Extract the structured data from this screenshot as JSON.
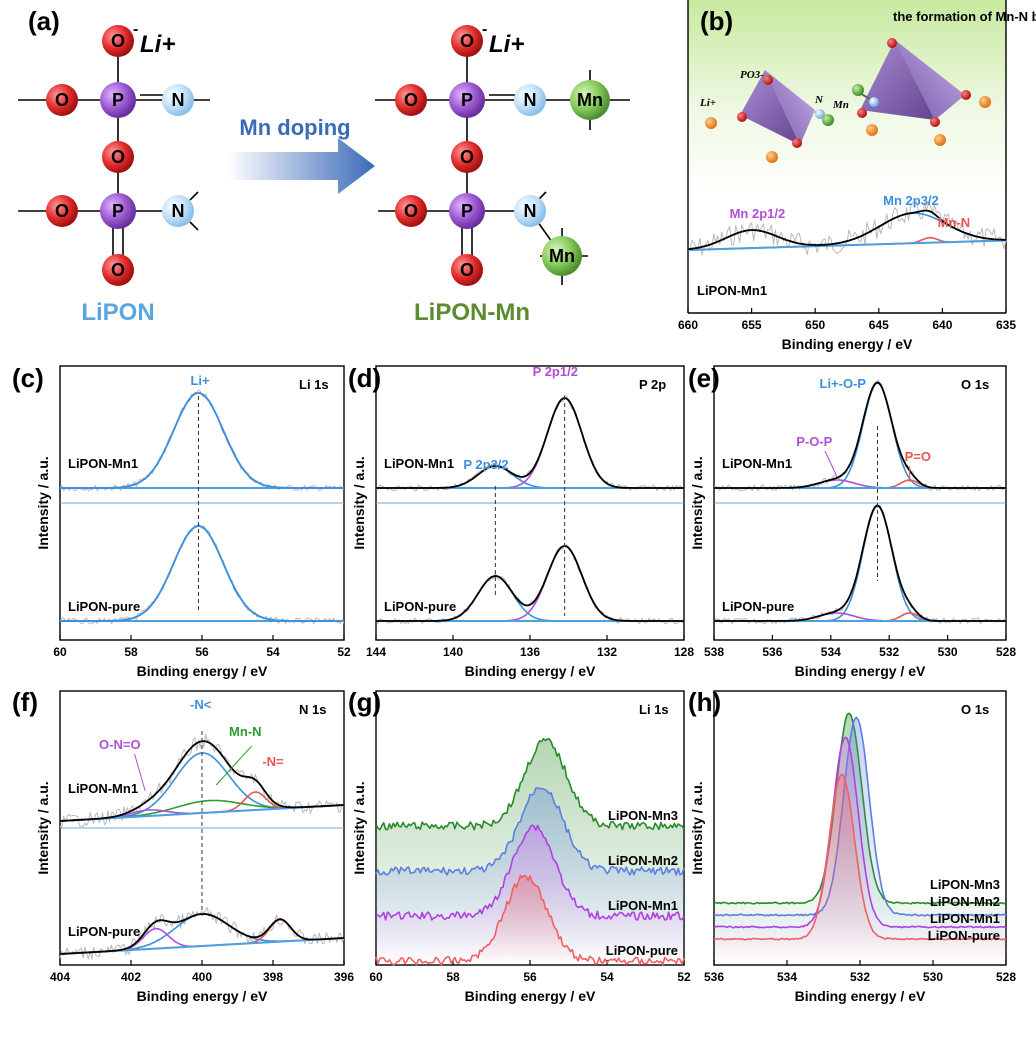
{
  "panel_a": {
    "label": "(a)",
    "li_plus": "Li+",
    "o_minus": "-",
    "atoms": {
      "O": "O",
      "P": "P",
      "N": "N",
      "Mn": "Mn"
    },
    "arrow_label": "Mn doping",
    "left_name": "LiPON",
    "right_name": "LiPON-Mn",
    "colors": {
      "O": "#e32b2b",
      "P": "#9b59d0",
      "N": "#a8d4f5",
      "Mn": "#7cc552",
      "left_name": "#5aa7e0",
      "right_name": "#5b8c2e"
    }
  },
  "chart_data": [
    {
      "id": "b",
      "type": "line",
      "panel_label": "(b)",
      "title": "the formation of Mn-N bond",
      "xlabel": "Binding energy / eV",
      "ylabel": "",
      "xlim": [
        660,
        635
      ],
      "xticks": [
        660,
        655,
        650,
        645,
        640,
        635
      ],
      "sample_label": "LiPON-Mn1",
      "peaks": [
        {
          "label": "Mn 2p1/2",
          "center": 655.0,
          "color": "#b04fd8"
        },
        {
          "label": "Mn 2p3/2",
          "center": 642.3,
          "color": "#3b8fdc"
        },
        {
          "label": "Mn-N",
          "center": 641.0,
          "color": "#e85555"
        }
      ],
      "structure_labels": {
        "po3": "PO3-",
        "li": "Li+",
        "n": "N",
        "mn": "Mn"
      }
    },
    {
      "id": "c",
      "type": "line",
      "panel_label": "(c)",
      "title": "Li 1s",
      "xlabel": "Binding energy / eV",
      "ylabel": "Intensity / a.u.",
      "xlim": [
        60,
        52
      ],
      "xticks": [
        60,
        58,
        56,
        54,
        52
      ],
      "series": [
        {
          "name": "LiPON-Mn1"
        },
        {
          "name": "LiPON-pure"
        }
      ],
      "peaks": [
        {
          "label": "Li+",
          "center": 56.1,
          "color": "#3b8fdc"
        }
      ],
      "dashed_line_at": 56.1
    },
    {
      "id": "d",
      "type": "line",
      "panel_label": "(d)",
      "title": "P 2p",
      "xlabel": "Binding energy / eV",
      "ylabel": "Intensity / a.u.",
      "xlim": [
        144,
        128
      ],
      "xticks": [
        144,
        140,
        136,
        132,
        128
      ],
      "series": [
        {
          "name": "LiPON-Mn1"
        },
        {
          "name": "LiPON-pure"
        }
      ],
      "peaks": [
        {
          "label": "P 2p3/2",
          "center": 137.8,
          "color": "#3b8fdc"
        },
        {
          "label": "P 2p1/2",
          "center": 134.2,
          "color": "#b04fd8"
        }
      ]
    },
    {
      "id": "e",
      "type": "line",
      "panel_label": "(e)",
      "title": "O 1s",
      "xlabel": "Binding energy / eV",
      "ylabel": "Intensity / a.u.",
      "xlim": [
        538,
        528
      ],
      "xticks": [
        538,
        536,
        534,
        532,
        530,
        528
      ],
      "series": [
        {
          "name": "LiPON-Mn1"
        },
        {
          "name": "LiPON-pure"
        }
      ],
      "peaks": [
        {
          "label": "Li+-O-P",
          "center": 532.4,
          "color": "#3b8fdc"
        },
        {
          "label": "P-O-P",
          "center": 533.8,
          "color": "#b04fd8"
        },
        {
          "label": "P=O",
          "center": 531.3,
          "color": "#e85555"
        }
      ]
    },
    {
      "id": "f",
      "type": "line",
      "panel_label": "(f)",
      "title": "N 1s",
      "xlabel": "Binding energy / eV",
      "ylabel": "Intensity / a.u.",
      "xlim": [
        404,
        396
      ],
      "xticks": [
        404,
        402,
        400,
        398,
        396
      ],
      "series": [
        {
          "name": "LiPON-Mn1"
        },
        {
          "name": "LiPON-pure"
        }
      ],
      "peaks": [
        {
          "label": "-N<",
          "center": 400.0,
          "color": "#3b8fdc"
        },
        {
          "label": "Mn-N",
          "center": 399.8,
          "color": "#2e9e2e"
        },
        {
          "label": "O-N=O",
          "center": 401.5,
          "color": "#b04fd8"
        },
        {
          "label": "-N=",
          "center": 398.5,
          "color": "#e85555"
        }
      ]
    },
    {
      "id": "g",
      "type": "area",
      "panel_label": "(g)",
      "title": "Li 1s",
      "xlabel": "Binding energy / eV",
      "ylabel": "Intensity / a.u.",
      "xlim": [
        60,
        52
      ],
      "xticks": [
        60,
        58,
        56,
        54,
        52
      ],
      "series": [
        {
          "name": "LiPON-Mn3",
          "color": "#2a8a2a",
          "center": 55.6
        },
        {
          "name": "LiPON-Mn2",
          "color": "#5a7fe0",
          "center": 55.7
        },
        {
          "name": "LiPON-Mn1",
          "color": "#b040e0",
          "center": 55.9
        },
        {
          "name": "LiPON-pure",
          "color": "#f06060",
          "center": 56.1
        }
      ]
    },
    {
      "id": "h",
      "type": "area",
      "panel_label": "(h)",
      "title": "O 1s",
      "xlabel": "Binding energy / eV",
      "ylabel": "Intensity / a.u.",
      "xlim": [
        536,
        528
      ],
      "xticks": [
        536,
        534,
        532,
        530,
        528
      ],
      "series": [
        {
          "name": "LiPON-Mn3",
          "color": "#2a8a2a",
          "center": 532.3
        },
        {
          "name": "LiPON-Mn2",
          "color": "#5a7fe0",
          "center": 532.1
        },
        {
          "name": "LiPON-Mn1",
          "color": "#b040e0",
          "center": 532.4
        },
        {
          "name": "LiPON-pure",
          "color": "#f06060",
          "center": 532.5
        }
      ]
    }
  ]
}
